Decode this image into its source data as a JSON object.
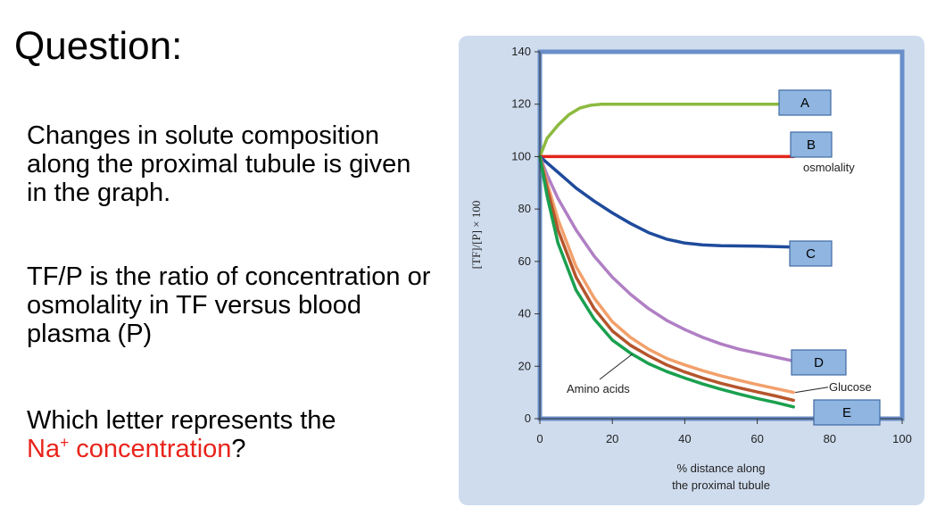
{
  "title": "Question:",
  "paragraph1": "Changes in solute composition along the proximal tubule is given in the graph.",
  "paragraph2": "TF/P is the ratio of concentration or osmolality in TF versus blood plasma (P)",
  "question": {
    "line1": "Which letter represents the",
    "highlight_main": "Na",
    "highlight_sup": "+",
    "highlight_rest": " concentration",
    "end": "?"
  },
  "colors": {
    "highlight": "#e8241c",
    "panel": "#cfdcee",
    "frame": "#6a8fc8",
    "label_box": "#8fb5e0"
  },
  "chart_data": {
    "type": "line",
    "xlabel": "% distance along the proximal tubule",
    "xlabel_lines": [
      "% distance along",
      "the proximal tubule"
    ],
    "ylabel": "[TF]/[P] × 100",
    "xlim": [
      0,
      100
    ],
    "ylim": [
      0,
      140
    ],
    "x_ticks": [
      "0",
      "20",
      "40",
      "60",
      "80",
      "100"
    ],
    "y_ticks": [
      "0",
      "20",
      "40",
      "60",
      "80",
      "100",
      "120",
      "140"
    ],
    "grid": false,
    "series": [
      {
        "label": "A",
        "color": "#8cba3f",
        "x": [
          0,
          2,
          5,
          8,
          11,
          14,
          17,
          20,
          25,
          70
        ],
        "y": [
          100,
          107,
          112,
          116,
          118.5,
          119.6,
          120,
          120,
          120,
          120
        ]
      },
      {
        "label": "B",
        "color": "#e32619",
        "x": [
          0,
          70
        ],
        "y": [
          100,
          100
        ]
      },
      {
        "label": "C",
        "color": "#1f4b9c",
        "x": [
          0,
          5,
          10,
          15,
          20,
          25,
          30,
          35,
          40,
          45,
          50,
          60,
          70
        ],
        "y": [
          100,
          94,
          88,
          83,
          78.5,
          74.5,
          71,
          68.5,
          67,
          66.3,
          66,
          65.8,
          65.5
        ]
      },
      {
        "label": "D",
        "color": "#b07fc4",
        "x": [
          0,
          2,
          5,
          10,
          15,
          20,
          25,
          30,
          35,
          40,
          45,
          50,
          55,
          60,
          65,
          70
        ],
        "y": [
          100,
          93,
          84,
          72,
          62,
          54,
          47.5,
          42,
          37.5,
          34,
          31,
          28.5,
          26.5,
          25,
          23.5,
          22
        ]
      },
      {
        "label": "Glucose",
        "color": "#f2a06b",
        "x": [
          0,
          2,
          5,
          10,
          15,
          20,
          25,
          30,
          35,
          40,
          45,
          50,
          55,
          60,
          65,
          70
        ],
        "y": [
          100,
          90,
          76,
          58,
          46,
          37,
          31,
          26.5,
          23,
          20.5,
          18.3,
          16.3,
          14.6,
          13,
          11.5,
          10
        ]
      },
      {
        "label": "E",
        "color": "#b5552c",
        "x": [
          0,
          2,
          5,
          10,
          15,
          20,
          25,
          30,
          35,
          40,
          45,
          50,
          55,
          60,
          65,
          70
        ],
        "y": [
          100,
          88,
          72,
          54,
          42,
          33.5,
          28,
          24,
          20.5,
          17.8,
          15.5,
          13.5,
          11.8,
          10.2,
          8.7,
          7
        ]
      },
      {
        "label": "Amino acids",
        "color": "#1aa04f",
        "x": [
          0,
          2,
          5,
          10,
          15,
          20,
          25,
          30,
          35,
          40,
          45,
          50,
          55,
          60,
          65,
          70
        ],
        "y": [
          100,
          85,
          67,
          49,
          38,
          30,
          25,
          21,
          18,
          15.5,
          13.2,
          11.2,
          9.4,
          7.7,
          6.2,
          4.5
        ]
      }
    ],
    "box_labels": [
      {
        "text": "A",
        "series": "A"
      },
      {
        "text": "B",
        "series": "B"
      },
      {
        "text": "C",
        "series": "C"
      },
      {
        "text": "D",
        "series": "D"
      },
      {
        "text": "E",
        "series": "E"
      }
    ],
    "annotations": [
      {
        "text": "osmolality",
        "series": "B"
      },
      {
        "text": "Glucose",
        "series": "Glucose"
      },
      {
        "text": "Amino acids",
        "series": "Amino acids"
      }
    ]
  }
}
